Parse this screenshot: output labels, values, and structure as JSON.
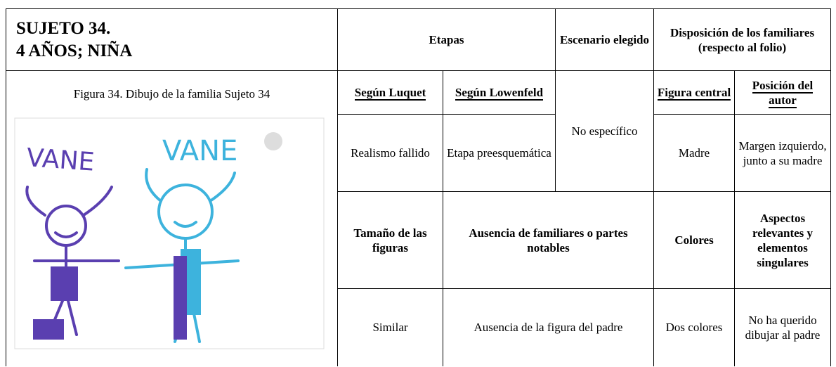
{
  "header": {
    "subject": "SUJETO 34.",
    "age": "4 AÑOS; NIÑA",
    "stages": "Etapas",
    "scenario": "Escenario elegido",
    "layout_title": "Disposición de los familiares",
    "layout_note": "(respecto al folio)"
  },
  "figure": {
    "caption": "Figura 34. Dibujo de la familia Sujeto 34",
    "labels": [
      "VANE",
      "VANE"
    ]
  },
  "table": {
    "rows": [
      [
        "Según Luquet",
        "Según Lowenfeld",
        "No específico",
        "Figura central",
        "Posición del autor"
      ],
      [
        "Realismo fallido",
        "Etapa preesquemática",
        "Madre",
        "Margen izquierdo, junto a su madre"
      ],
      [
        "Tamaño de las figuras",
        "Ausencia de familiares o partes notables",
        "Colores",
        "Aspectos relevantes y elementos singulares"
      ],
      [
        "Similar",
        "Ausencia de la figura del padre",
        "Dos colores",
        "No ha querido dibujar al padre"
      ]
    ]
  }
}
